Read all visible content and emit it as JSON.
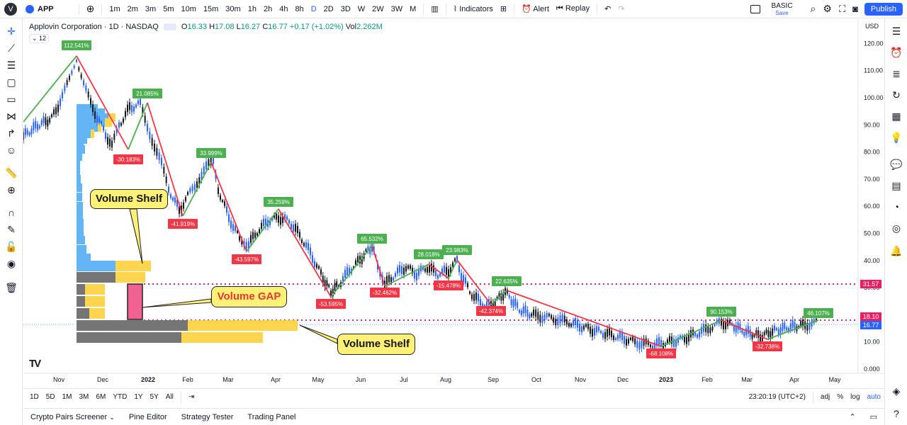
{
  "topbar": {
    "user_initial": "V",
    "symbol": "APP",
    "timeframes": [
      "1m",
      "2m",
      "3m",
      "5m",
      "10m",
      "15m",
      "30m",
      "1h",
      "2h",
      "4h",
      "8h",
      "D",
      "2D",
      "3D",
      "W",
      "2W",
      "3W",
      "M"
    ],
    "active_timeframe": "D",
    "indicators_label": "Indicators",
    "alert_label": "Alert",
    "replay_label": "Replay",
    "plan_label": "BASIC",
    "save_label": "Save",
    "publish_label": "Publish"
  },
  "legend": {
    "title": "Applovin Corporation · 1D · NASDAQ",
    "o_label": "O",
    "o_val": "16.33",
    "h_label": "H",
    "h_val": "17.08",
    "l_label": "L",
    "l_val": "16.27",
    "c_label": "C",
    "c_val": "16.77",
    "change": "+0.17 (+1.02%)",
    "vol_label": "Vol",
    "vol_val": "2.262M",
    "indicator_count": "12"
  },
  "axis": {
    "currency": "USD",
    "price_ticks": [
      "120.00",
      "110.00",
      "100.00",
      "90.00",
      "80.00",
      "70.00",
      "60.00",
      "50.00",
      "40.00",
      "30.00",
      "20.00",
      "10.00",
      "0.000"
    ],
    "time_ticks": [
      "Nov",
      "Dec",
      "2022",
      "Feb",
      "Mar",
      "Apr",
      "May",
      "Jun",
      "Jul",
      "Aug",
      "Sep",
      "Oct",
      "Nov",
      "Dec",
      "2023",
      "Feb",
      "Mar",
      "Apr",
      "May"
    ],
    "label_31": "31.57",
    "label_18": "18.10",
    "label_16": "16.77"
  },
  "annotations": {
    "shelf_top": "Volume Shelf",
    "gap": "Volume GAP",
    "shelf_bottom": "Volume Shelf"
  },
  "swing_labels": [
    {
      "text": "112.541%",
      "kind": "up"
    },
    {
      "text": "-30.183%",
      "kind": "down"
    },
    {
      "text": "21.085%",
      "kind": "up"
    },
    {
      "text": "-41.919%",
      "kind": "down"
    },
    {
      "text": "33.999%",
      "kind": "up"
    },
    {
      "text": "-43.597%",
      "kind": "down"
    },
    {
      "text": "35.259%",
      "kind": "up"
    },
    {
      "text": "-53.595%",
      "kind": "down"
    },
    {
      "text": "65.532%",
      "kind": "up"
    },
    {
      "text": "-32.462%",
      "kind": "down"
    },
    {
      "text": "28.018%",
      "kind": "up"
    },
    {
      "text": "-15.478%",
      "kind": "down"
    },
    {
      "text": "23.983%",
      "kind": "up"
    },
    {
      "text": "-42.374%",
      "kind": "down"
    },
    {
      "text": "22.635%",
      "kind": "up"
    },
    {
      "text": "-68.108%",
      "kind": "down"
    },
    {
      "text": "90.153%",
      "kind": "up"
    },
    {
      "text": "-32.738%",
      "kind": "down"
    },
    {
      "text": "46.107%",
      "kind": "up"
    }
  ],
  "bottombar": {
    "ranges": [
      "1D",
      "5D",
      "1M",
      "3M",
      "6M",
      "YTD",
      "1Y",
      "5Y",
      "All"
    ],
    "clock": "23:20:19 (UTC+2)",
    "adj": "adj",
    "pct": "%",
    "log": "log",
    "auto": "auto"
  },
  "tabs": [
    "Crypto Pairs Screener",
    "Pine Editor",
    "Strategy Tester",
    "Trading Panel"
  ],
  "colors": {
    "up": "#4caf50",
    "down": "#f23645",
    "shelf_yellow": "#ffd54f",
    "gap_pink": "#f06292",
    "blue": "#64b5f6"
  }
}
